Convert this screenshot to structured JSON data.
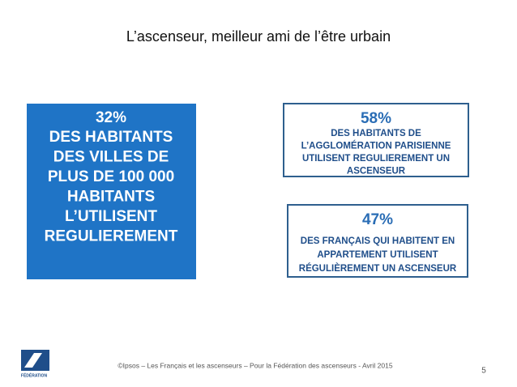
{
  "header": {
    "title": "L’ascenseur, meilleur ami de l’être urbain"
  },
  "boxes": [
    {
      "figure": "32%",
      "lines": [
        "DES HABITANTS",
        "DES VILLES DE",
        "PLUS DE 100 000",
        "HABITANTS",
        "L’UTILISENT",
        "REGULIEREMENT"
      ]
    },
    {
      "figure": "58%",
      "lines": [
        "DES HABITANTS DE",
        "L’AGGLOMÉRATION PARISIENNE",
        "UTILISENT REGULIEREMENT UN",
        "ASCENSEUR"
      ]
    },
    {
      "figure": "47%",
      "lines": [
        "DES FRANÇAIS QUI HABITENT EN",
        "APPARTEMENT UTILISENT",
        "RÉGULIÈREMENT UN ASCENSEUR"
      ]
    }
  ],
  "footer": {
    "source": "©Ipsos – Les Français et les ascenseurs – Pour la Fédération des ascenseurs - Avril 2015",
    "page": "5",
    "logo": "FÉDÉRATION"
  }
}
